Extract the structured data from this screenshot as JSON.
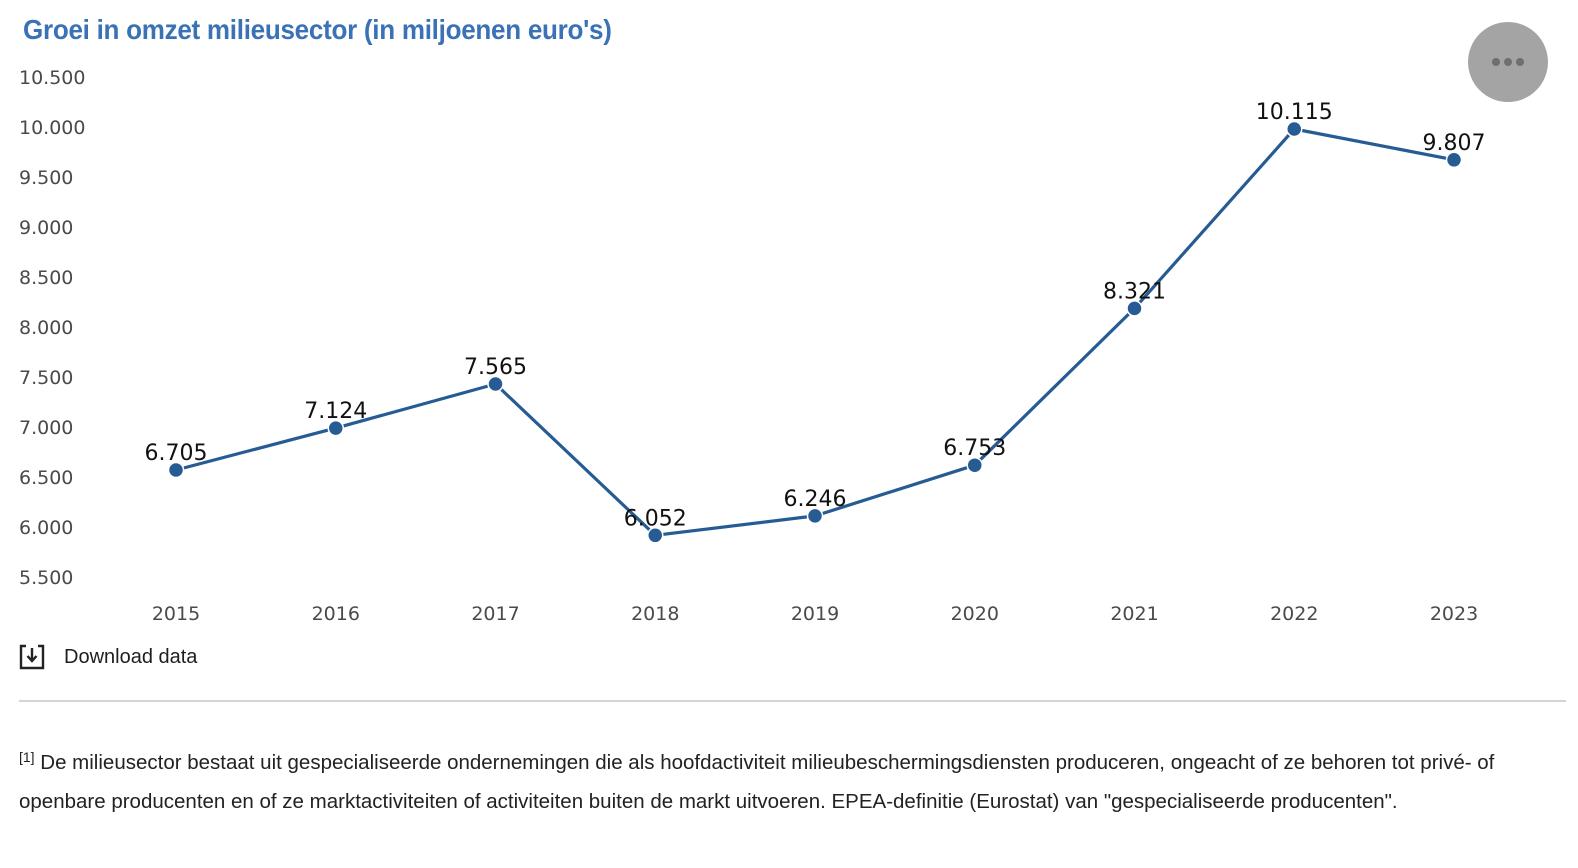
{
  "title": "Groei in omzet milieusector (in miljoenen euro's)",
  "menu_button": {
    "icon": "more-horizontal-icon"
  },
  "download": {
    "label": "Download data",
    "icon": "download-icon"
  },
  "footnote": {
    "marker": "[1]",
    "text": " De milieusector bestaat uit gespecialiseerde ondernemingen die als hoofdactiviteit milieubeschermingsdiensten produceren, ongeacht of ze behoren tot privé- of openbare producenten en of ze marktactiviteiten of activiteiten buiten de markt uitvoeren. EPEA-definitie (Eurostat) van \"gespecialiseerde producenten\"."
  },
  "colors": {
    "title": "#3a72b5",
    "series": "#275b93"
  },
  "chart_data": {
    "type": "line",
    "title": "Groei in omzet milieusector (in miljoenen euro's)",
    "xlabel": "",
    "ylabel": "",
    "categories": [
      "2015",
      "2016",
      "2017",
      "2018",
      "2019",
      "2020",
      "2021",
      "2022",
      "2023"
    ],
    "series": [
      {
        "name": "Omzet milieusector",
        "values": [
          6705,
          7124,
          7565,
          6052,
          6246,
          6753,
          8321,
          10115,
          9807
        ],
        "labels": [
          "6.705",
          "7.124",
          "7.565",
          "6.052",
          "6.246",
          "6.753",
          "8.321",
          "10.115",
          "9.807"
        ]
      }
    ],
    "y_ticks": [
      5500,
      6000,
      6500,
      7000,
      7500,
      8000,
      8500,
      9000,
      9500,
      10000,
      10500
    ],
    "y_tick_labels": [
      "5.500",
      "6.000",
      "6.500",
      "7.000",
      "7.500",
      "8.000",
      "8.500",
      "9.000",
      "9.500",
      "10.000",
      "10.500"
    ],
    "ylim": [
      5500,
      10500
    ],
    "grid": false,
    "legend": "none",
    "markers": true,
    "data_labels": true
  }
}
